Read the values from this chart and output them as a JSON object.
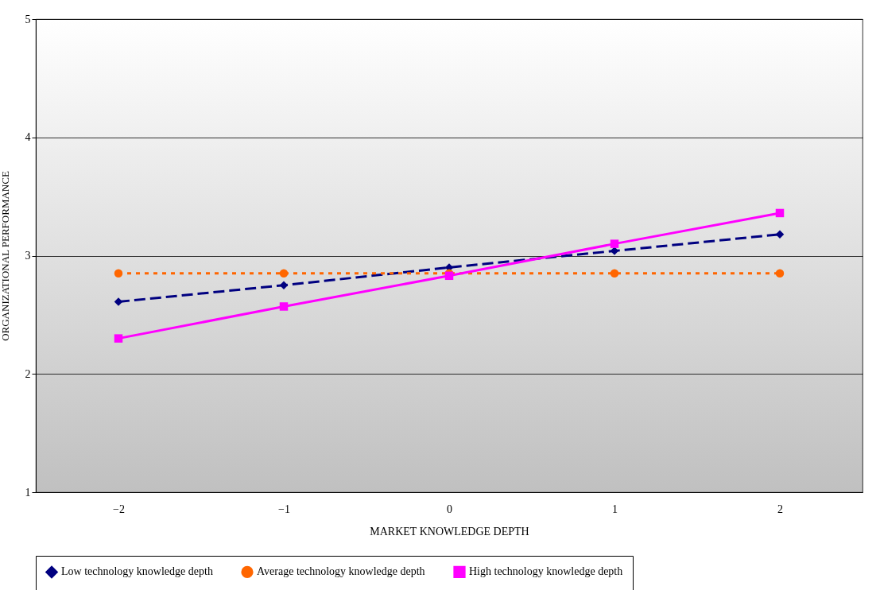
{
  "chart_data": {
    "type": "line",
    "xlabel": "MARKET KNOWLEDGE DEPTH",
    "ylabel": "ORGANIZATIONAL PERFORMANCE",
    "categories": [
      "−2",
      "−1",
      "0",
      "1",
      "2"
    ],
    "series": [
      {
        "name": "Low technology knowledge depth",
        "color": "#000080",
        "marker": "diamond",
        "line_style": "dashed",
        "values": [
          2.61,
          2.75,
          2.9,
          3.04,
          3.18
        ]
      },
      {
        "name": "Average technology knowledge depth",
        "color": "#ff6600",
        "marker": "circle",
        "line_style": "dotted",
        "values": [
          2.85,
          2.85,
          2.85,
          2.85,
          2.85
        ]
      },
      {
        "name": "High technology knowledge depth",
        "color": "#ff00ff",
        "marker": "square",
        "line_style": "solid",
        "values": [
          2.3,
          2.57,
          2.83,
          3.1,
          3.36
        ]
      }
    ],
    "ylim": [
      1,
      5
    ],
    "yticks": [
      1,
      2,
      3,
      4,
      5
    ],
    "grid": "y",
    "legend": "bottom"
  }
}
